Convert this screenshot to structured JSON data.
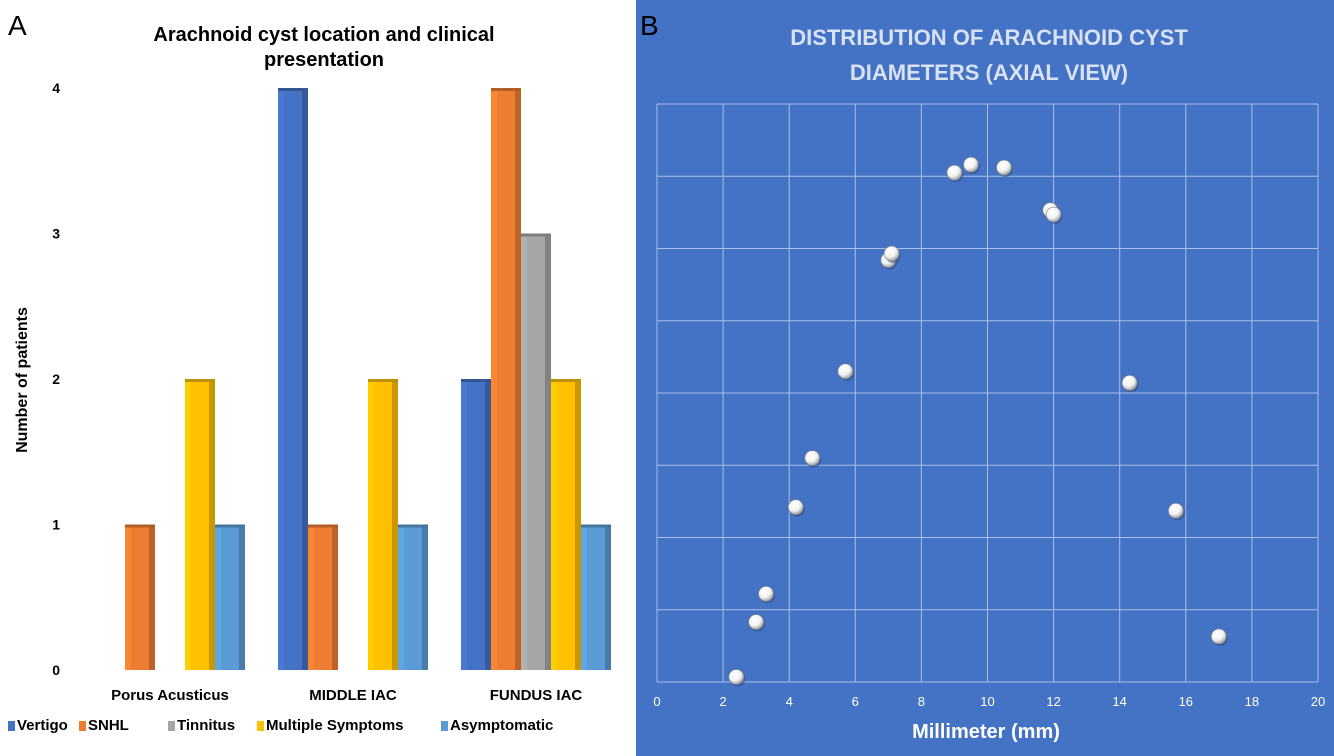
{
  "panels": {
    "a_label": "A",
    "b_label": "B"
  },
  "colors": {
    "Vertigo": "#4472C4",
    "SNHL": "#ED7D31",
    "Tinnitus": "#A5A5A5",
    "Multiple Symptoms": "#FFC000",
    "Asymptomatic": "#5B9BD5",
    "panel_b_bg": "#4472C4",
    "marker": "#ffffff"
  },
  "chart_data": [
    {
      "type": "bar",
      "title": "Arachnoid cyst location and clinical presentation",
      "title_lines": [
        "Arachnoid cyst location and clinical",
        "presentation"
      ],
      "xlabel": "",
      "ylabel": "Number of patients",
      "ylim": [
        0,
        4
      ],
      "yticks": [
        0,
        1,
        2,
        3,
        4
      ],
      "categories": [
        "Porus Acusticus",
        "MIDDLE IAC",
        "FUNDUS IAC"
      ],
      "series": [
        {
          "name": "Vertigo",
          "values": [
            0,
            4,
            2
          ]
        },
        {
          "name": "SNHL",
          "values": [
            1,
            1,
            4
          ]
        },
        {
          "name": "Tinnitus",
          "values": [
            0,
            0,
            3
          ]
        },
        {
          "name": "Multiple Symptoms",
          "values": [
            2,
            2,
            2
          ]
        },
        {
          "name": "Asymptomatic",
          "values": [
            1,
            1,
            1
          ]
        }
      ],
      "legend_position": "bottom",
      "grid": false
    },
    {
      "type": "scatter",
      "title": "DISTRIBUTION OF ARACHNOID CYST DIAMETERS (AXIAL VIEW)",
      "title_lines": [
        "DISTRIBUTION OF ARACHNOID CYST",
        "DIAMETERS (AXIAL VIEW)"
      ],
      "xlabel": "Millimeter (mm)",
      "ylabel": "",
      "xlim": [
        0,
        20
      ],
      "xticks": [
        0,
        2,
        4,
        6,
        8,
        10,
        12,
        14,
        16,
        18,
        20
      ],
      "ylim": [
        0,
        8
      ],
      "y_ticks_shown": false,
      "grid": true,
      "points": [
        {
          "x": 2.4,
          "y": 0.07
        },
        {
          "x": 3.0,
          "y": 0.83
        },
        {
          "x": 3.3,
          "y": 1.22
        },
        {
          "x": 4.2,
          "y": 2.42
        },
        {
          "x": 4.7,
          "y": 3.1
        },
        {
          "x": 5.7,
          "y": 4.3
        },
        {
          "x": 7.0,
          "y": 5.84
        },
        {
          "x": 7.1,
          "y": 5.93
        },
        {
          "x": 9.0,
          "y": 7.05
        },
        {
          "x": 9.5,
          "y": 7.16
        },
        {
          "x": 10.5,
          "y": 7.12
        },
        {
          "x": 11.9,
          "y": 6.53
        },
        {
          "x": 12.0,
          "y": 6.47
        },
        {
          "x": 14.3,
          "y": 4.14
        },
        {
          "x": 15.7,
          "y": 2.37
        },
        {
          "x": 17.0,
          "y": 0.63
        }
      ]
    }
  ]
}
